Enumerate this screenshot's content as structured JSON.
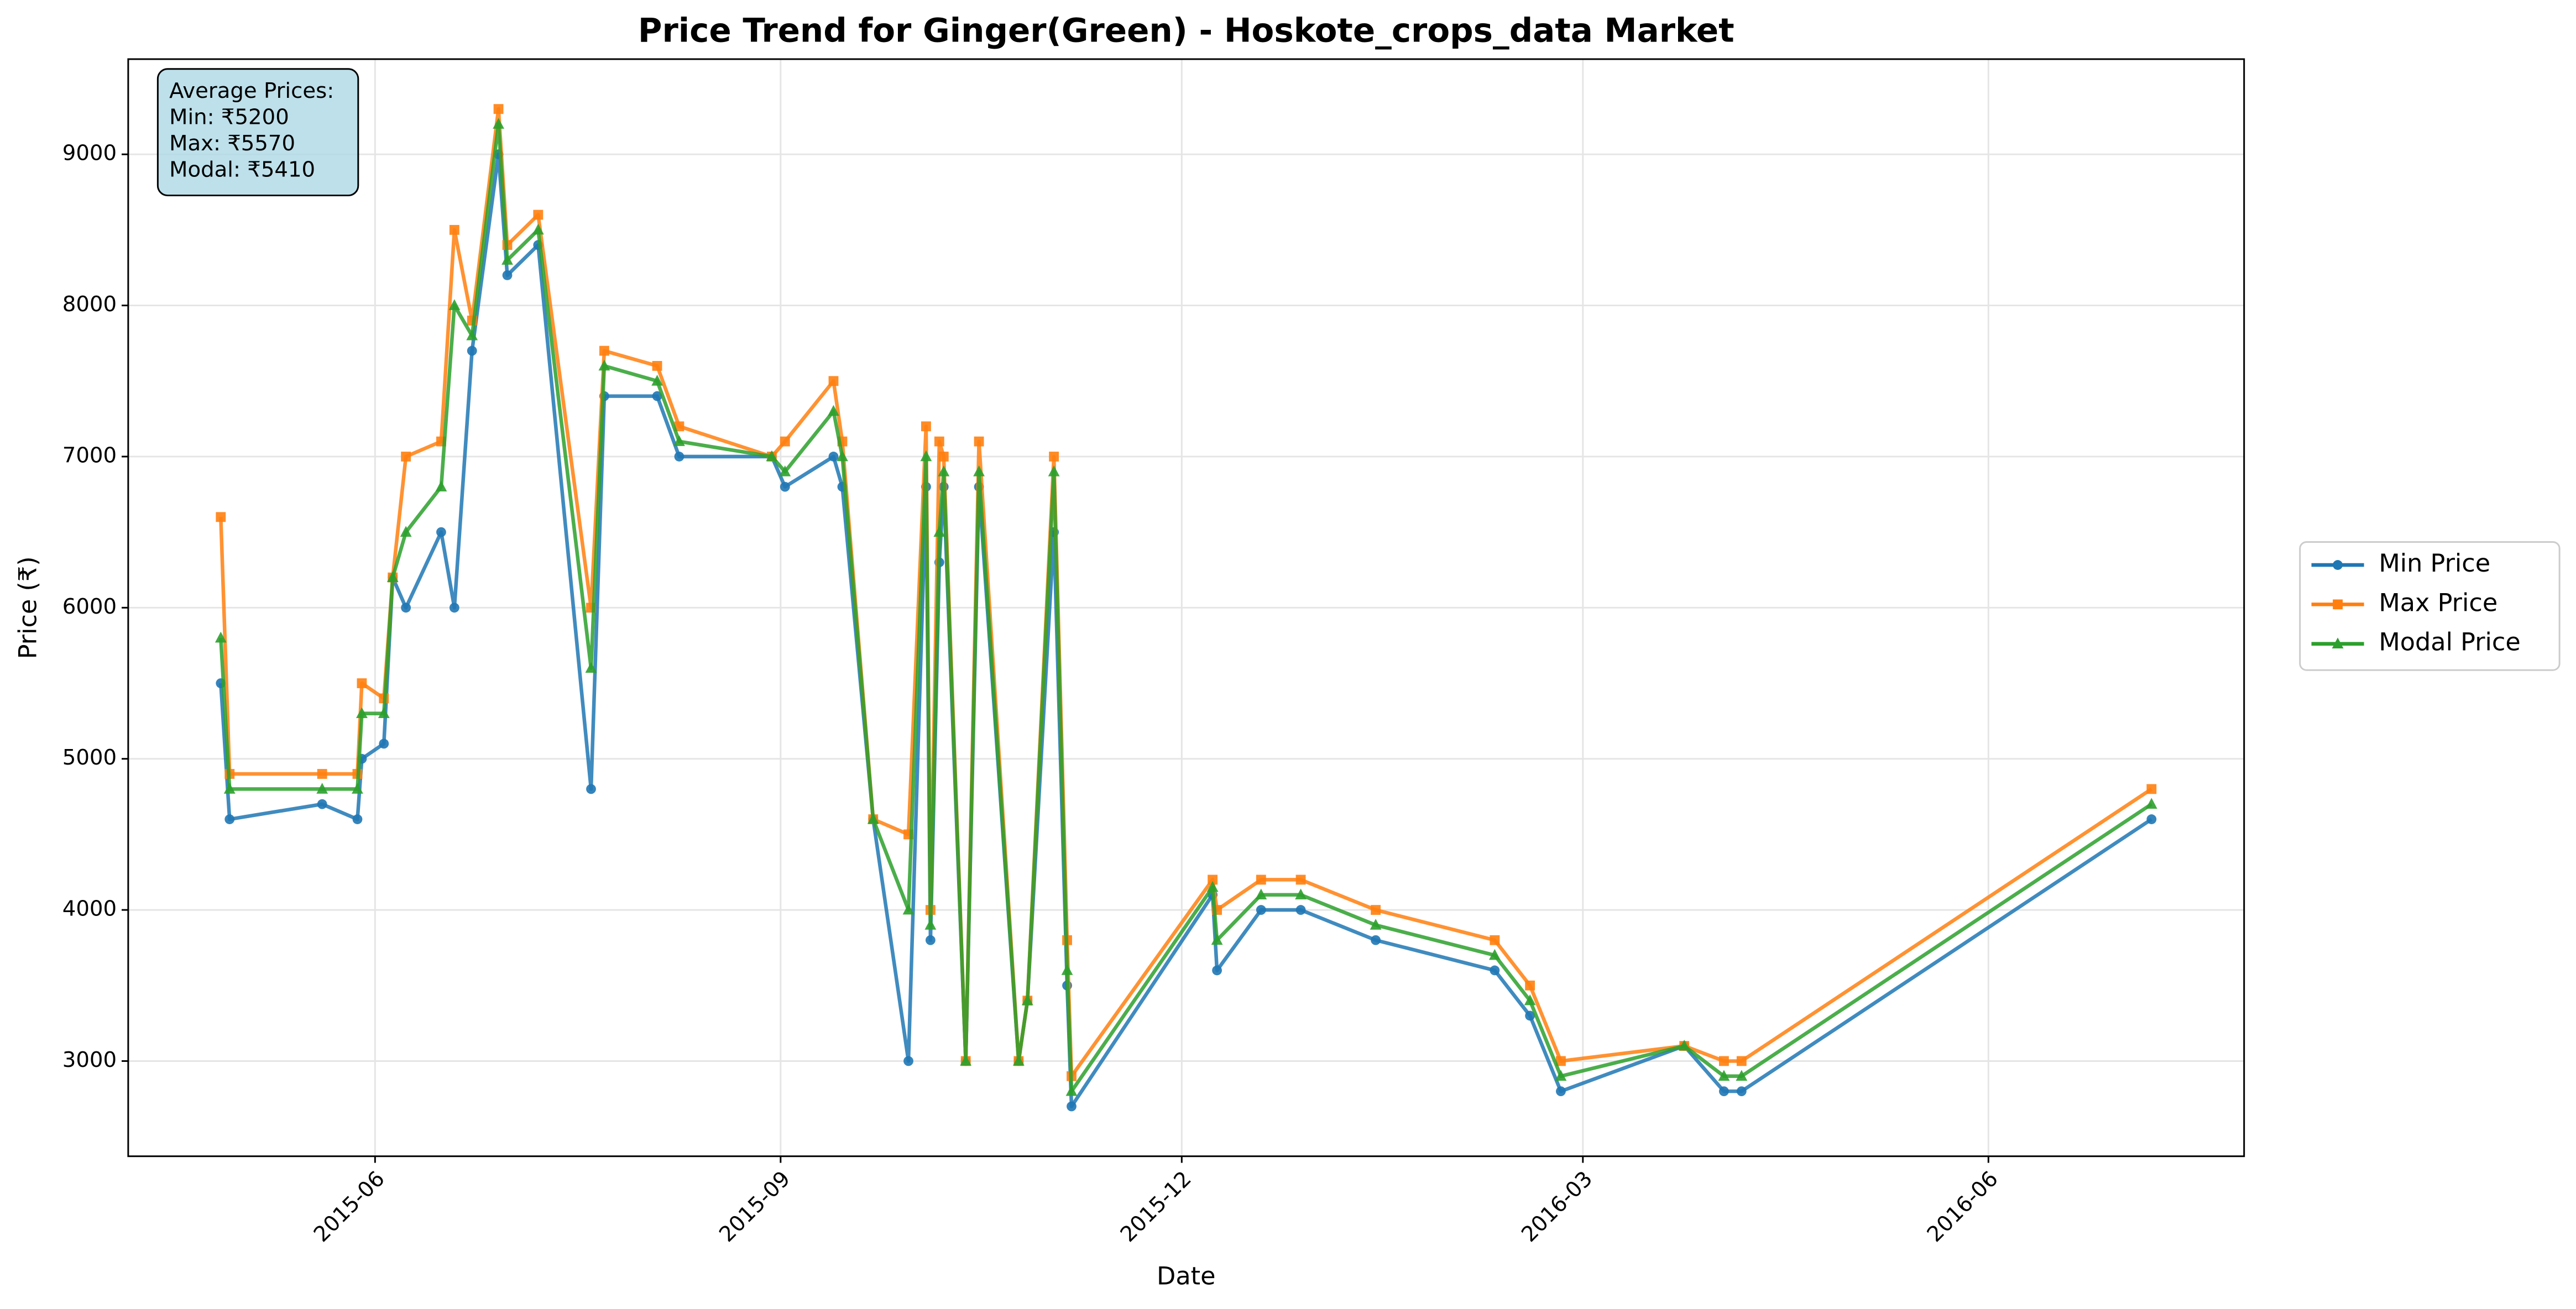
{
  "chart_data": {
    "type": "line",
    "title": "Price Trend for Ginger(Green) - Hoskote_crops_data Market",
    "xlabel": "Date",
    "ylabel": "Price (₹)",
    "annotation": [
      "Average Prices:",
      "Min: ₹5200",
      "Max: ₹5570",
      "Modal: ₹5410"
    ],
    "x": [
      "2015-04-27",
      "2015-04-29",
      "2015-05-20",
      "2015-05-28",
      "2015-05-29",
      "2015-06-03",
      "2015-06-05",
      "2015-06-08",
      "2015-06-16",
      "2015-06-19",
      "2015-06-23",
      "2015-06-29",
      "2015-07-01",
      "2015-07-08",
      "2015-07-20",
      "2015-07-23",
      "2015-08-04",
      "2015-08-09",
      "2015-08-30",
      "2015-09-02",
      "2015-09-13",
      "2015-09-15",
      "2015-09-22",
      "2015-09-30",
      "2015-10-04",
      "2015-10-05",
      "2015-10-07",
      "2015-10-08",
      "2015-10-13",
      "2015-10-16",
      "2015-10-25",
      "2015-10-27",
      "2015-11-02",
      "2015-11-05",
      "2015-11-06",
      "2015-12-08",
      "2015-12-09",
      "2015-12-19",
      "2015-12-28",
      "2016-01-14",
      "2016-02-10",
      "2016-02-18",
      "2016-02-25",
      "2016-03-24",
      "2016-04-02",
      "2016-04-06",
      "2016-07-08"
    ],
    "series": [
      {
        "name": "Min Price",
        "color": "#1f77b4",
        "marker": "circle",
        "values": [
          5500,
          4600,
          4700,
          4600,
          5000,
          5100,
          6200,
          6000,
          6500,
          6000,
          7700,
          9000,
          8200,
          8400,
          4800,
          7400,
          7400,
          7000,
          7000,
          6800,
          7000,
          6800,
          4600,
          3000,
          6800,
          3800,
          6300,
          6800,
          3000,
          6800,
          3000,
          3400,
          6500,
          3500,
          2700,
          4100,
          3600,
          4000,
          4000,
          3800,
          3600,
          3300,
          2800,
          3100,
          2800,
          2800,
          4600
        ]
      },
      {
        "name": "Max Price",
        "color": "#ff7f0e",
        "marker": "square",
        "values": [
          6600,
          4900,
          4900,
          4900,
          5500,
          5400,
          6200,
          7000,
          7100,
          8500,
          7900,
          9300,
          8400,
          8600,
          6000,
          7700,
          7600,
          7200,
          7000,
          7100,
          7500,
          7100,
          4600,
          4500,
          7200,
          4000,
          7100,
          7000,
          3000,
          7100,
          3000,
          3400,
          7000,
          3800,
          2900,
          4200,
          4000,
          4200,
          4200,
          4000,
          3800,
          3500,
          3000,
          3100,
          3000,
          3000,
          4800
        ]
      },
      {
        "name": "Modal Price",
        "color": "#2ca02c",
        "marker": "triangle",
        "values": [
          5800,
          4800,
          4800,
          4800,
          5300,
          5300,
          6200,
          6500,
          6800,
          8000,
          7800,
          9200,
          8300,
          8500,
          5600,
          7600,
          7500,
          7100,
          7000,
          6900,
          7300,
          7000,
          4600,
          4000,
          7000,
          3900,
          6500,
          6900,
          3000,
          6900,
          3000,
          3400,
          6900,
          3600,
          2800,
          4150,
          3800,
          4100,
          4100,
          3900,
          3700,
          3400,
          2900,
          3100,
          2900,
          2900,
          4700
        ]
      }
    ],
    "xlim": [
      "2015-04-06",
      "2016-07-29"
    ],
    "xticks": [
      {
        "value": "2015-06-01",
        "label": "2015-06"
      },
      {
        "value": "2015-09-01",
        "label": "2015-09"
      },
      {
        "value": "2015-12-01",
        "label": "2015-12"
      },
      {
        "value": "2016-03-01",
        "label": "2016-03"
      },
      {
        "value": "2016-06-01",
        "label": "2016-06"
      }
    ],
    "ylim": [
      2370,
      9630
    ],
    "yticks": [
      3000,
      4000,
      5000,
      6000,
      7000,
      8000,
      9000
    ],
    "grid": true,
    "legend": "right"
  }
}
